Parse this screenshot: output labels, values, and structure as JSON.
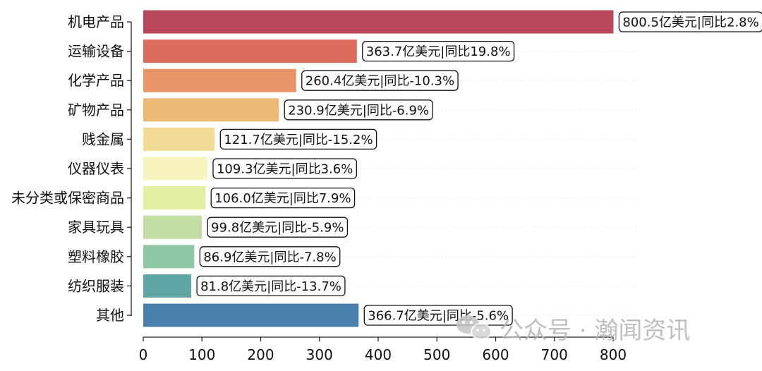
{
  "chart_data": {
    "type": "bar",
    "orientation": "horizontal",
    "categories": [
      "机电产品",
      "运输设备",
      "化学产品",
      "矿物产品",
      "贱金属",
      "仪器仪表",
      "未分类或保密商品",
      "家具玩具",
      "塑料橡胶",
      "纺织服装",
      "其他"
    ],
    "values": [
      800.5,
      363.7,
      260.4,
      230.9,
      121.7,
      109.3,
      106.0,
      99.8,
      86.9,
      81.8,
      366.7
    ],
    "data_labels": [
      "800.5亿美元|同比2.8%",
      "363.7亿美元|同比19.8%",
      "260.4亿美元|同比-10.3%",
      "230.9亿美元|同比-6.9%",
      "121.7亿美元|同比-15.2%",
      "109.3亿美元|同比3.6%",
      "106.0亿美元|同比7.9%",
      "99.8亿美元|同比-5.9%",
      "86.9亿美元|同比-7.8%",
      "81.8亿美元|同比-13.7%",
      "366.7亿美元|同比-5.6%"
    ],
    "colors": [
      "#b8475a",
      "#dd6b5c",
      "#e8956a",
      "#ecb977",
      "#f2dc95",
      "#f7f5bd",
      "#e3eda4",
      "#c2dea4",
      "#8fc6a4",
      "#5ea5a3",
      "#4b7fab"
    ],
    "xlim": [
      0,
      800
    ],
    "xticks": [
      0,
      100,
      200,
      300,
      400,
      500,
      600,
      700,
      800
    ],
    "title": "",
    "xlabel": "",
    "ylabel": "",
    "grid": "horizontal dotted"
  },
  "watermark": {
    "text": "公众号 · 瀚闻资讯",
    "icon": "wechat-icon"
  }
}
